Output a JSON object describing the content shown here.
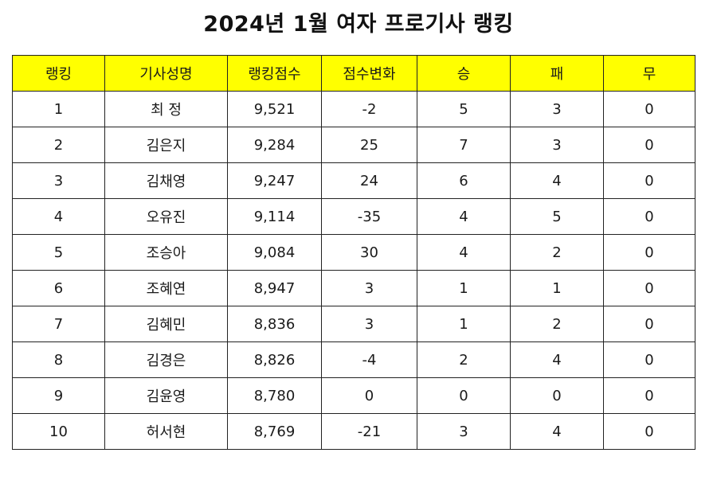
{
  "title": "2024년 1월 여자 프로기사 랭킹",
  "table": {
    "headers": [
      "랭킹",
      "기사성명",
      "랭킹점수",
      "점수변화",
      "승",
      "패",
      "무"
    ],
    "header_bg": "#ffff00",
    "rows": [
      [
        "1",
        "최 정",
        "9,521",
        "-2",
        "5",
        "3",
        "0"
      ],
      [
        "2",
        "김은지",
        "9,284",
        "25",
        "7",
        "3",
        "0"
      ],
      [
        "3",
        "김채영",
        "9,247",
        "24",
        "6",
        "4",
        "0"
      ],
      [
        "4",
        "오유진",
        "9,114",
        "-35",
        "4",
        "5",
        "0"
      ],
      [
        "5",
        "조승아",
        "9,084",
        "30",
        "4",
        "2",
        "0"
      ],
      [
        "6",
        "조혜연",
        "8,947",
        "3",
        "1",
        "1",
        "0"
      ],
      [
        "7",
        "김혜민",
        "8,836",
        "3",
        "1",
        "2",
        "0"
      ],
      [
        "8",
        "김경은",
        "8,826",
        "-4",
        "2",
        "4",
        "0"
      ],
      [
        "9",
        "김윤영",
        "8,780",
        "0",
        "0",
        "0",
        "0"
      ],
      [
        "10",
        "허서현",
        "8,769",
        "-21",
        "3",
        "4",
        "0"
      ]
    ]
  }
}
